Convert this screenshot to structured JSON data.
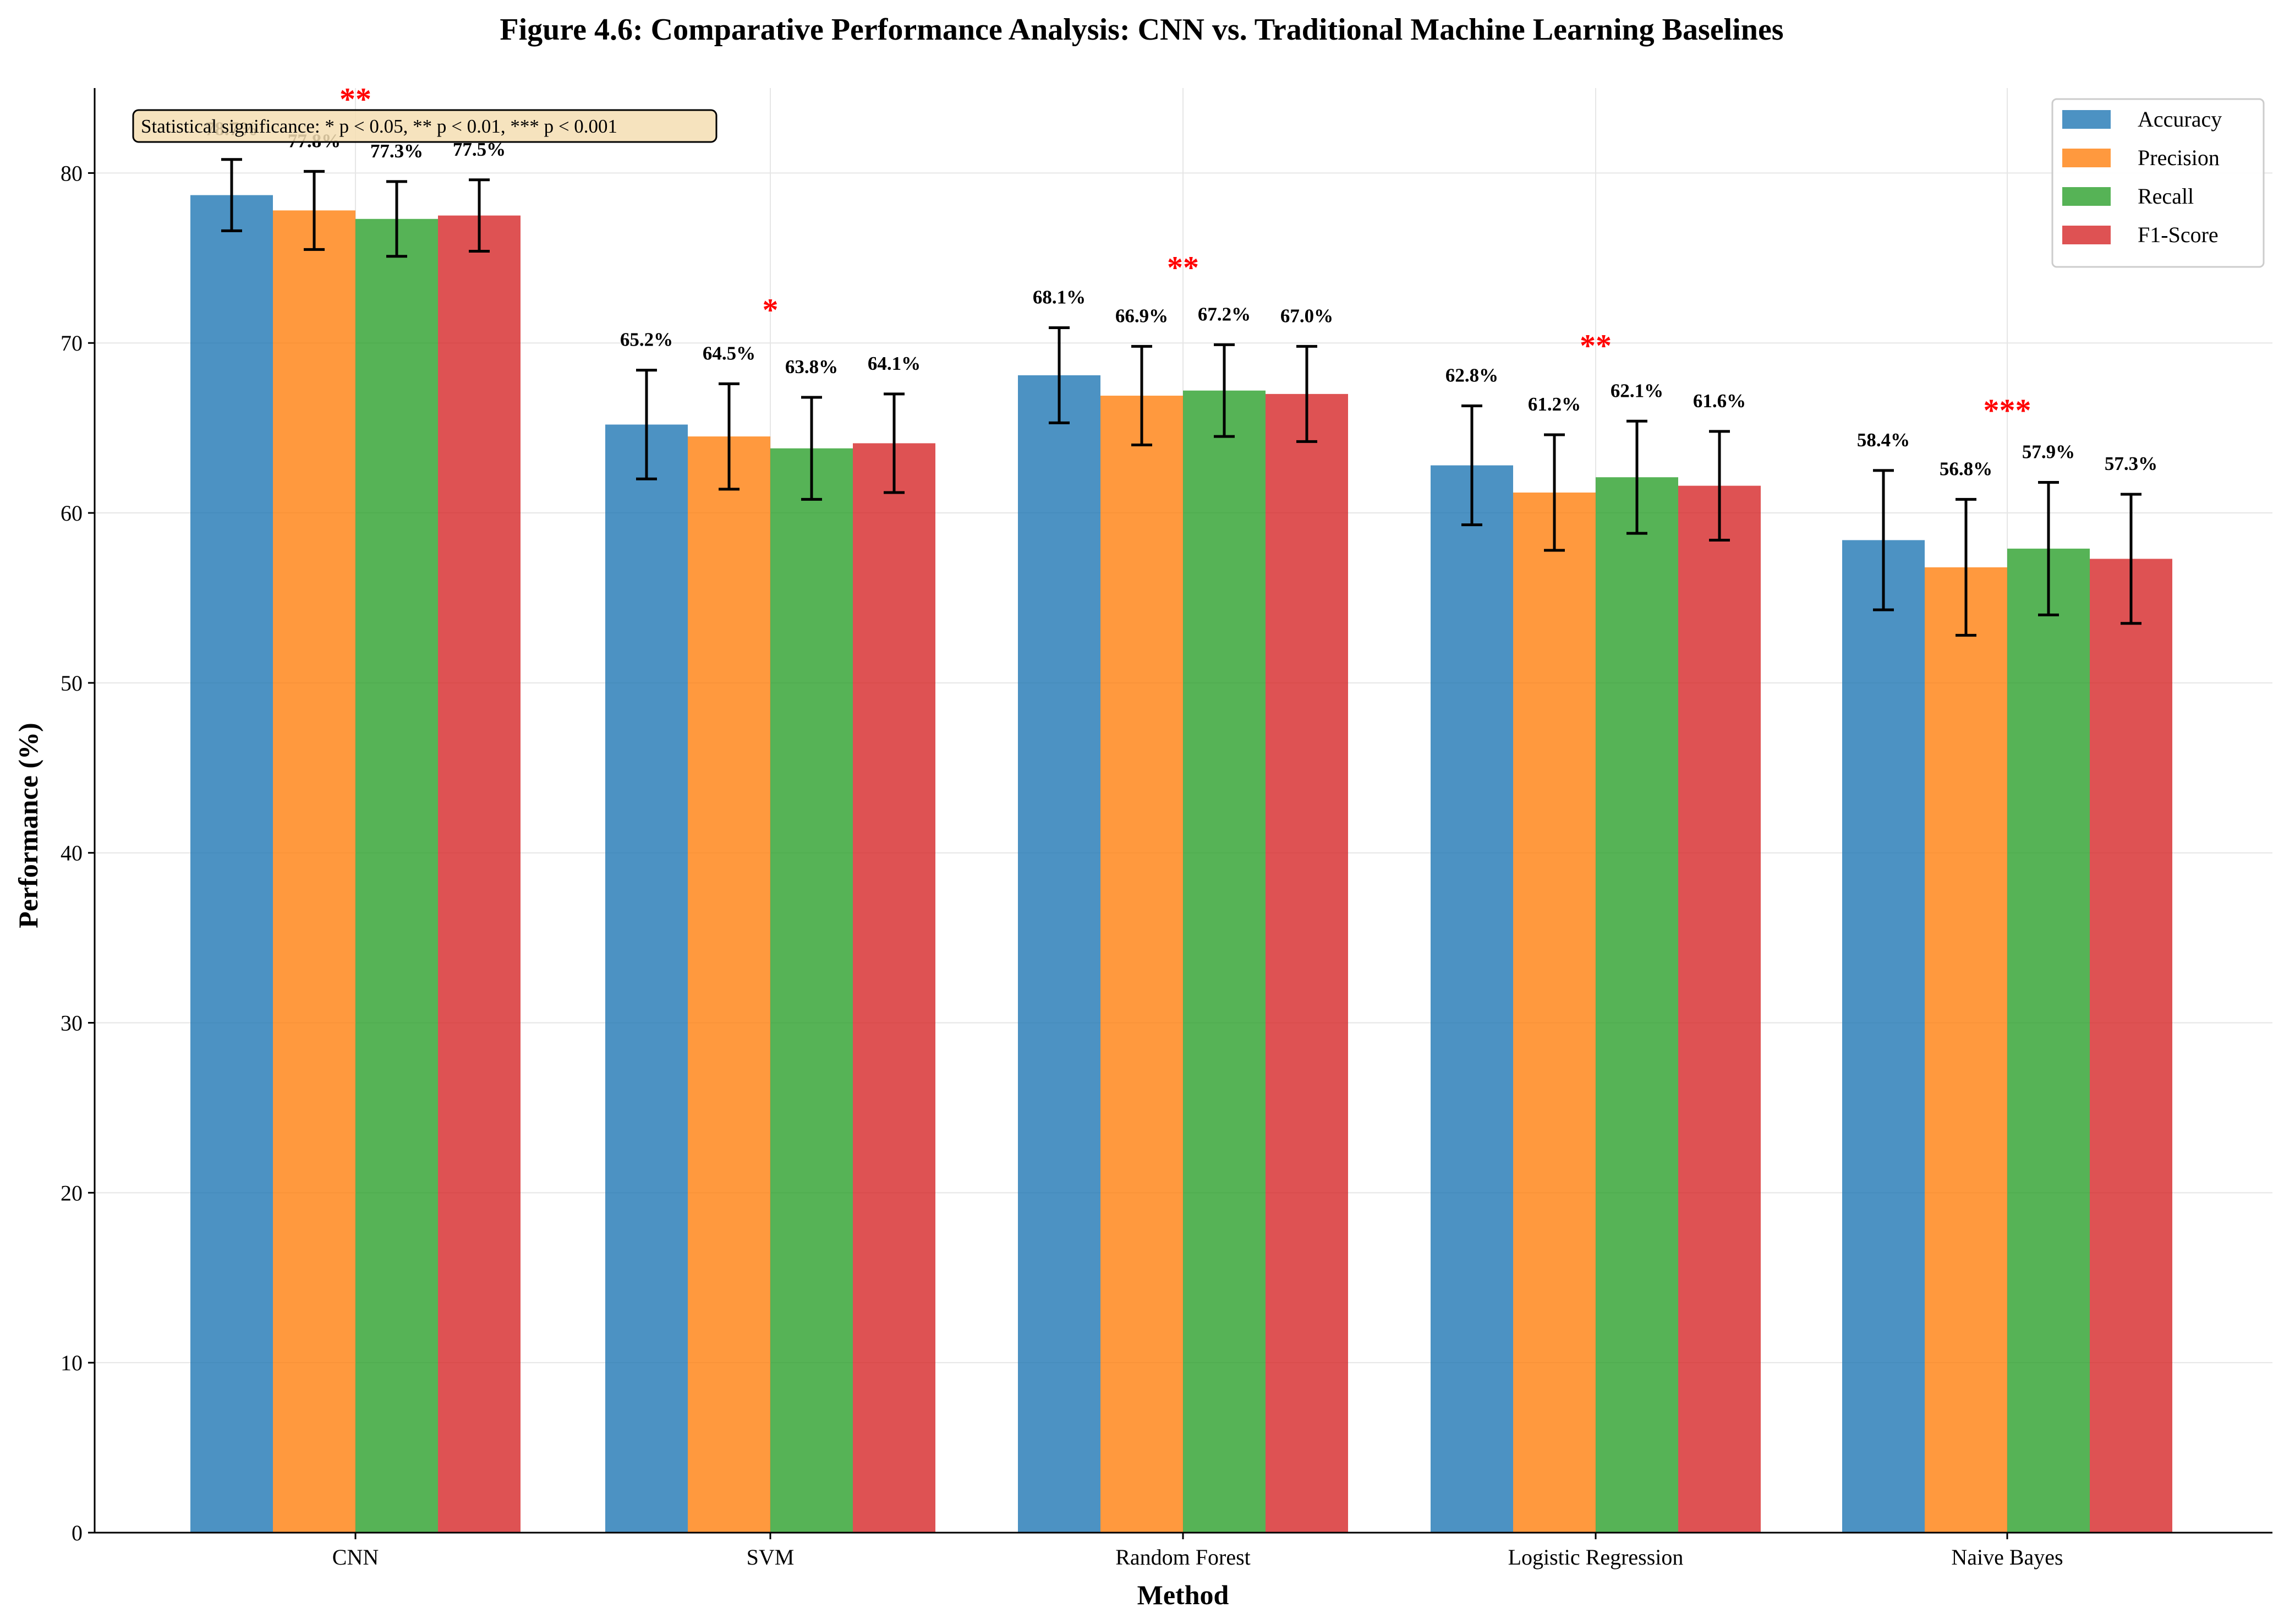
{
  "chart_data": {
    "type": "bar",
    "title": "Figure 4.6: Comparative Performance Analysis: CNN vs. Traditional Machine Learning Baselines",
    "xlabel": "Method",
    "ylabel": "Performance (%)",
    "ylim": [
      0,
      85
    ],
    "yticks": [
      0,
      10,
      20,
      30,
      40,
      50,
      60,
      70,
      80
    ],
    "grid": true,
    "legend_position": "top-right",
    "categories": [
      "CNN",
      "SVM",
      "Random Forest",
      "Logistic Regression",
      "Naive Bayes"
    ],
    "series": [
      {
        "name": "Accuracy",
        "color": "#1f77b4",
        "values": [
          78.7,
          65.2,
          68.1,
          62.8,
          58.4
        ],
        "errors": [
          2.1,
          3.2,
          2.8,
          3.5,
          4.1
        ]
      },
      {
        "name": "Precision",
        "color": "#ff7f0e",
        "values": [
          77.8,
          64.5,
          66.9,
          61.2,
          56.8
        ],
        "errors": [
          2.3,
          3.1,
          2.9,
          3.4,
          4.0
        ]
      },
      {
        "name": "Recall",
        "color": "#2ca02c",
        "values": [
          77.3,
          63.8,
          67.2,
          62.1,
          57.9
        ],
        "errors": [
          2.2,
          3.0,
          2.7,
          3.3,
          3.9
        ]
      },
      {
        "name": "F1-Score",
        "color": "#d62728",
        "values": [
          77.5,
          64.1,
          67.0,
          61.6,
          57.3
        ],
        "errors": [
          2.1,
          2.9,
          2.8,
          3.2,
          3.8
        ]
      }
    ],
    "value_labels": [
      [
        "78.7%",
        "77.8%",
        "77.3%",
        "77.5%"
      ],
      [
        "65.2%",
        "64.5%",
        "63.8%",
        "64.1%"
      ],
      [
        "68.1%",
        "66.9%",
        "67.2%",
        "67.0%"
      ],
      [
        "62.8%",
        "61.2%",
        "62.1%",
        "61.6%"
      ],
      [
        "58.4%",
        "56.8%",
        "57.9%",
        "57.3%"
      ]
    ],
    "significance": [
      "**",
      "*",
      "**",
      "**",
      "***"
    ],
    "significance_color": "#ff0000",
    "annotation": "Statistical significance: * p < 0.05, ** p < 0.01, *** p < 0.001"
  }
}
